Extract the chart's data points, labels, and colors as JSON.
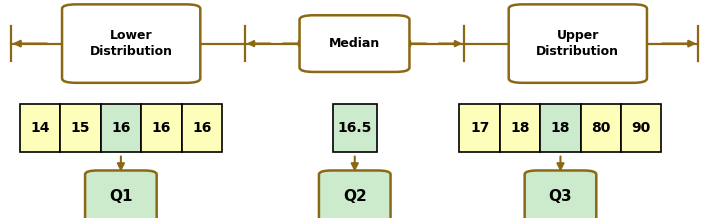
{
  "fig_width": 7.09,
  "fig_height": 2.18,
  "dpi": 100,
  "arrow_color": "#8B6914",
  "cell_yellow": "#FEFEBB",
  "cell_green": "#CCEBCC",
  "q_box_fill": "#CCEBCC",
  "q_box_edge": "#8B6914",
  "label_box_fill": "#FFFFFF",
  "label_box_edge": "#8B6914",
  "lower_label": "Lower\nDistribution",
  "median_label": "Median",
  "upper_label": "Upper\nDistribution",
  "lower_values": [
    "14",
    "15",
    "16",
    "16",
    "16"
  ],
  "lower_highlight": [
    false,
    false,
    true,
    false,
    false
  ],
  "median_value": "16.5",
  "upper_values": [
    "17",
    "18",
    "18",
    "80",
    "90"
  ],
  "upper_highlight": [
    false,
    false,
    true,
    false,
    false
  ],
  "q1_label": "Q1",
  "q2_label": "Q2",
  "q3_label": "Q3"
}
